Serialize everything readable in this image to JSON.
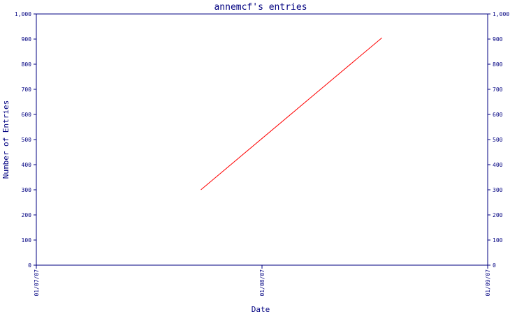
{
  "chart_data": {
    "type": "line",
    "title": "annemcf's entries",
    "xlabel": "Date",
    "ylabel": "Number of Entries",
    "ylim": [
      0,
      1000
    ],
    "yticks": [
      0,
      100,
      200,
      300,
      400,
      500,
      600,
      700,
      800,
      900,
      1000
    ],
    "ytick_labels": [
      "0",
      "100",
      "200",
      "300",
      "400",
      "500",
      "600",
      "700",
      "800",
      "900",
      "1,000"
    ],
    "xlim": [
      "2007-01-07",
      "2007-01-09"
    ],
    "xticks": [
      "2007-01-07",
      "2007-01-08",
      "2007-01-09"
    ],
    "xtick_labels": [
      "01/07/07",
      "01/08/07",
      "01/09/07"
    ],
    "right_axis": true,
    "grid": false,
    "series": [
      {
        "x": [
          "2007-01-07T17:30",
          "2007-01-08T12:45"
        ],
        "y": [
          300,
          905
        ],
        "color": "#ff0000"
      }
    ]
  },
  "colors": {
    "axis": "#000080",
    "series": "#ff0000",
    "background": "#ffffff"
  }
}
